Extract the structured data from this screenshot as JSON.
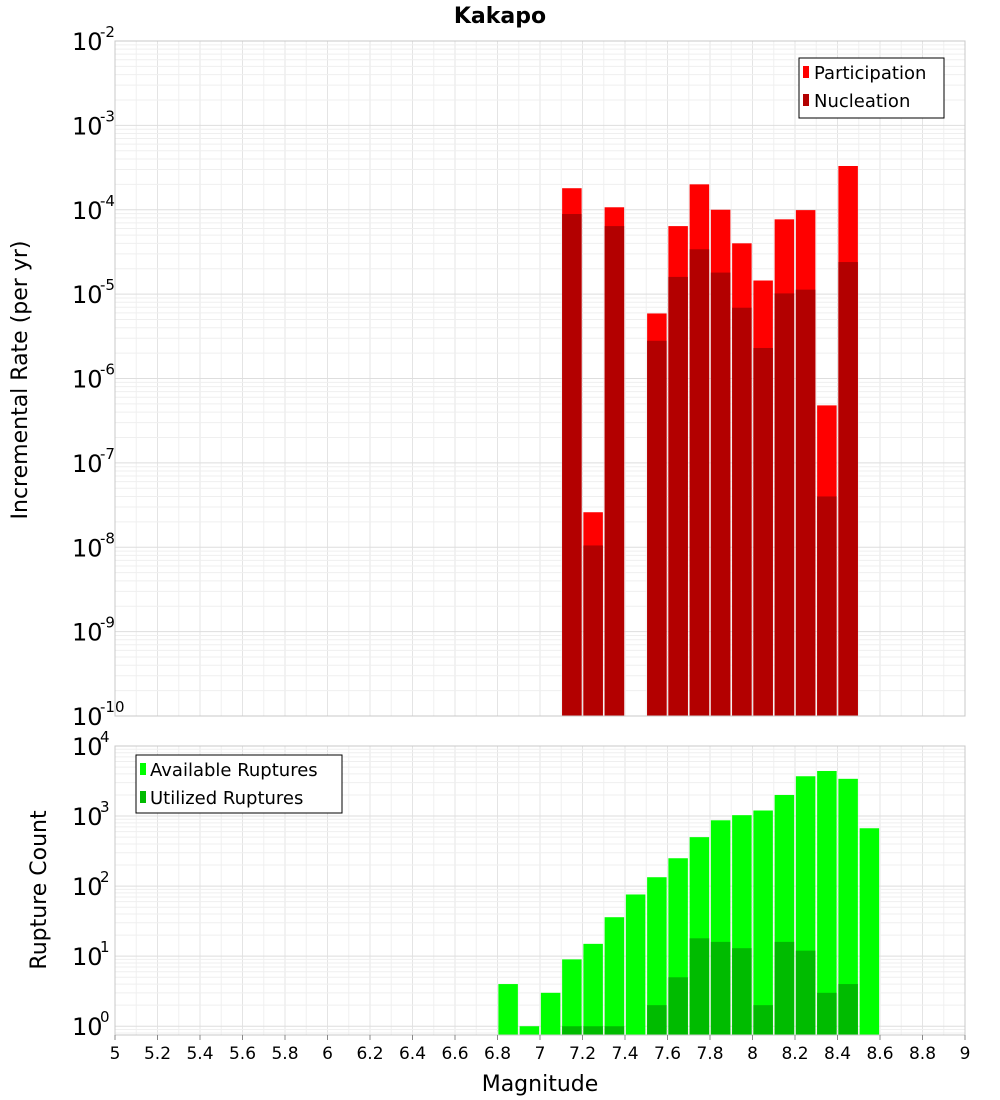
{
  "chart_data": [
    {
      "type": "bar",
      "title": "Kakapo",
      "xlabel": "",
      "ylabel": "Incremental Rate (per yr)",
      "yscale": "log",
      "xlim": [
        5,
        9
      ],
      "ylim": [
        1e-10,
        0.01
      ],
      "y_tick_labels": [
        {
          "base": "10",
          "exp": "-10"
        },
        {
          "base": "10",
          "exp": "-9"
        },
        {
          "base": "10",
          "exp": "-8"
        },
        {
          "base": "10",
          "exp": "-7"
        },
        {
          "base": "10",
          "exp": "-6"
        },
        {
          "base": "10",
          "exp": "-5"
        },
        {
          "base": "10",
          "exp": "-4"
        },
        {
          "base": "10",
          "exp": "-3"
        },
        {
          "base": "10",
          "exp": "-2"
        }
      ],
      "grid": true,
      "legend_position": "top-right",
      "x": [
        7.15,
        7.25,
        7.35,
        7.45,
        7.55,
        7.65,
        7.75,
        7.85,
        7.95,
        8.05,
        8.15,
        8.25,
        8.35,
        8.45
      ],
      "series": [
        {
          "name": "Participation",
          "color": "#ff0000",
          "values": [
            0.00018,
            2.6e-08,
            0.000107,
            null,
            5.9e-06,
            6.4e-05,
            0.0002,
            0.0001,
            4e-05,
            1.45e-05,
            7.7e-05,
            9.9e-05,
            4.8e-07,
            0.00033
          ]
        },
        {
          "name": "Nucleation",
          "color": "#b30000",
          "values": [
            8.9e-05,
            1.05e-08,
            6.4e-05,
            null,
            2.8e-06,
            1.6e-05,
            3.4e-05,
            1.8e-05,
            6.9e-06,
            2.3e-06,
            1.02e-05,
            1.13e-05,
            4e-08,
            2.4e-05
          ]
        }
      ]
    },
    {
      "type": "bar",
      "xlabel": "Magnitude",
      "ylabel": "Rupture Count",
      "yscale": "log",
      "xlim": [
        5,
        9
      ],
      "ylim": [
        0.75,
        10000
      ],
      "x_tick_labels": [
        "5",
        "5.2",
        "5.4",
        "5.6",
        "5.8",
        "6",
        "6.2",
        "6.4",
        "6.6",
        "6.8",
        "7",
        "7.2",
        "7.4",
        "7.6",
        "7.8",
        "8",
        "8.2",
        "8.4",
        "8.6",
        "8.8",
        "9"
      ],
      "y_tick_labels": [
        {
          "base": "10",
          "exp": "0"
        },
        {
          "base": "10",
          "exp": "1"
        },
        {
          "base": "10",
          "exp": "2"
        },
        {
          "base": "10",
          "exp": "3"
        },
        {
          "base": "10",
          "exp": "4"
        }
      ],
      "grid": true,
      "legend_position": "top-left",
      "x": [
        6.85,
        6.95,
        7.05,
        7.15,
        7.25,
        7.35,
        7.45,
        7.55,
        7.65,
        7.75,
        7.85,
        7.95,
        8.05,
        8.15,
        8.25,
        8.35,
        8.45,
        8.55
      ],
      "series": [
        {
          "name": "Available Ruptures",
          "color": "#00ff00",
          "values": [
            4,
            1,
            3,
            9,
            15,
            36,
            76,
            134,
            250,
            500,
            870,
            1030,
            1200,
            2000,
            3700,
            4400,
            3400,
            670
          ]
        },
        {
          "name": "Utilized Ruptures",
          "color": "#00bb00",
          "values": [
            null,
            null,
            null,
            1,
            1,
            1,
            null,
            2,
            5,
            18,
            16,
            13,
            2,
            16,
            12,
            3,
            4,
            null
          ]
        }
      ]
    }
  ]
}
